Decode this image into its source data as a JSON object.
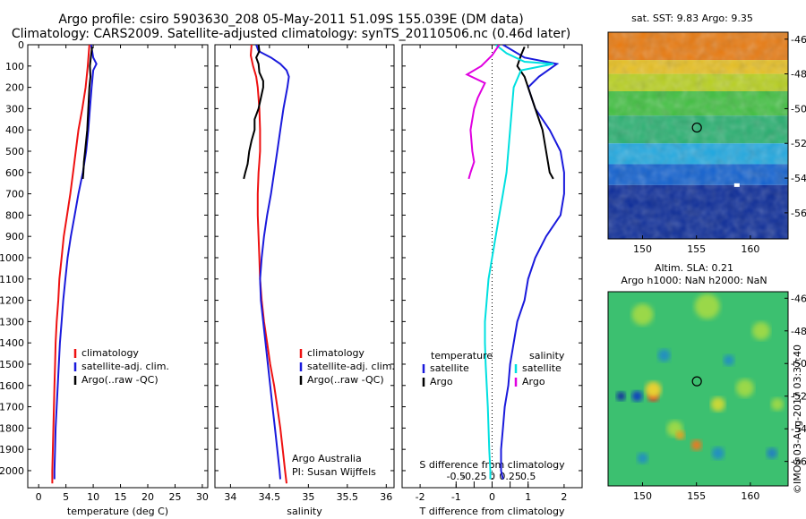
{
  "header": {
    "line1": "Argo profile: csiro 5903630_208 05-May-2011 51.09S 155.039E (DM data)",
    "line2": "Climatology: CARS2009. Satellite-adjusted climatology: synTS_20110506.nc (0.46d later)"
  },
  "colors": {
    "clim": "#ee1111",
    "sat": "#1a1adc",
    "argo": "#000000",
    "sat_diff": "#00e0e0",
    "argo_sal_diff": "#e000e0"
  },
  "chart_data": [
    {
      "type": "line",
      "id": "temperature",
      "xlabel": "temperature (deg C)",
      "ylabel": "",
      "xlim": [
        -2,
        31
      ],
      "ylim": [
        2080,
        0
      ],
      "xticks": [
        0,
        5,
        10,
        15,
        20,
        25,
        30
      ],
      "xtick_labels": [
        "0",
        "5",
        "10",
        "15",
        "20",
        "25",
        "30"
      ],
      "yticks": [
        0,
        100,
        200,
        300,
        400,
        500,
        600,
        700,
        800,
        900,
        1000,
        1100,
        1200,
        1300,
        1400,
        1500,
        1600,
        1700,
        1800,
        1900,
        2000
      ],
      "ytick_labels": [
        "0",
        "100",
        "200",
        "300",
        "400",
        "500",
        "600",
        "700",
        "800",
        "900",
        "1000",
        "1100",
        "1200",
        "1300",
        "1400",
        "1500",
        "1600",
        "1700",
        "1800",
        "1900",
        "2000"
      ],
      "legend": [
        "climatology",
        "satellite-adj. clim.",
        "Argo(..raw -QC)"
      ],
      "legend_placement": "lower-center",
      "series": [
        {
          "name": "climatology",
          "color": "#ee1111",
          "points": [
            [
              9.3,
              0
            ],
            [
              9.0,
              100
            ],
            [
              8.6,
              200
            ],
            [
              8.0,
              300
            ],
            [
              7.3,
              400
            ],
            [
              6.8,
              500
            ],
            [
              6.3,
              600
            ],
            [
              5.8,
              700
            ],
            [
              5.2,
              800
            ],
            [
              4.6,
              900
            ],
            [
              4.2,
              1000
            ],
            [
              3.8,
              1100
            ],
            [
              3.6,
              1200
            ],
            [
              3.3,
              1300
            ],
            [
              3.1,
              1400
            ],
            [
              3.0,
              1500
            ],
            [
              2.9,
              1600
            ],
            [
              2.8,
              1700
            ],
            [
              2.7,
              1800
            ],
            [
              2.6,
              1900
            ],
            [
              2.5,
              2000
            ],
            [
              2.5,
              2060
            ]
          ]
        },
        {
          "name": "satellite-adj. clim.",
          "color": "#1a1adc",
          "points": [
            [
              9.6,
              0
            ],
            [
              10.0,
              60
            ],
            [
              10.6,
              90
            ],
            [
              10.0,
              120
            ],
            [
              9.7,
              200
            ],
            [
              9.4,
              300
            ],
            [
              9.1,
              400
            ],
            [
              8.7,
              500
            ],
            [
              8.1,
              600
            ],
            [
              7.3,
              700
            ],
            [
              6.6,
              800
            ],
            [
              5.9,
              900
            ],
            [
              5.3,
              1000
            ],
            [
              4.9,
              1100
            ],
            [
              4.5,
              1200
            ],
            [
              4.2,
              1300
            ],
            [
              3.9,
              1400
            ],
            [
              3.7,
              1500
            ],
            [
              3.5,
              1600
            ],
            [
              3.3,
              1700
            ],
            [
              3.1,
              1800
            ],
            [
              3.0,
              1900
            ],
            [
              2.9,
              2000
            ],
            [
              2.9,
              2040
            ]
          ]
        },
        {
          "name": "Argo(..raw -QC)",
          "color": "#000000",
          "points": [
            [
              9.8,
              10
            ],
            [
              9.6,
              50
            ],
            [
              9.4,
              100
            ],
            [
              9.5,
              150
            ],
            [
              9.3,
              200
            ],
            [
              9.2,
              250
            ],
            [
              9.1,
              300
            ],
            [
              9.0,
              350
            ],
            [
              8.9,
              400
            ],
            [
              8.7,
              450
            ],
            [
              8.5,
              500
            ],
            [
              8.3,
              550
            ],
            [
              8.2,
              600
            ],
            [
              8.1,
              630
            ]
          ]
        }
      ]
    },
    {
      "type": "line",
      "id": "salinity",
      "xlabel": "salinity",
      "ylabel": "",
      "xlim": [
        33.8,
        36.1
      ],
      "ylim": [
        2080,
        0
      ],
      "xticks": [
        34,
        34.5,
        35,
        35.5,
        36
      ],
      "xtick_labels": [
        "34",
        "34.5",
        "35",
        "35.5",
        "36"
      ],
      "legend": [
        "climatology",
        "satellite-adj. clim.",
        "Argo(..raw -QC)"
      ],
      "legend_placement": "lower-right",
      "annotations": [
        "Argo Australia",
        "PI: Susan Wijffels"
      ],
      "series": [
        {
          "name": "climatology",
          "color": "#ee1111",
          "points": [
            [
              34.27,
              0
            ],
            [
              34.26,
              50
            ],
            [
              34.29,
              100
            ],
            [
              34.33,
              150
            ],
            [
              34.35,
              200
            ],
            [
              34.37,
              300
            ],
            [
              34.38,
              400
            ],
            [
              34.38,
              500
            ],
            [
              34.37,
              550
            ],
            [
              34.36,
              600
            ],
            [
              34.35,
              700
            ],
            [
              34.35,
              800
            ],
            [
              34.36,
              900
            ],
            [
              34.37,
              1000
            ],
            [
              34.38,
              1100
            ],
            [
              34.4,
              1200
            ],
            [
              34.43,
              1300
            ],
            [
              34.47,
              1400
            ],
            [
              34.51,
              1500
            ],
            [
              34.56,
              1600
            ],
            [
              34.6,
              1700
            ],
            [
              34.64,
              1800
            ],
            [
              34.67,
              1900
            ],
            [
              34.7,
              2000
            ],
            [
              34.72,
              2060
            ]
          ]
        },
        {
          "name": "satellite-adj. clim.",
          "color": "#1a1adc",
          "points": [
            [
              34.33,
              0
            ],
            [
              34.36,
              30
            ],
            [
              34.52,
              60
            ],
            [
              34.64,
              90
            ],
            [
              34.72,
              120
            ],
            [
              34.75,
              150
            ],
            [
              34.73,
              200
            ],
            [
              34.68,
              300
            ],
            [
              34.64,
              400
            ],
            [
              34.6,
              500
            ],
            [
              34.56,
              600
            ],
            [
              34.52,
              700
            ],
            [
              34.47,
              800
            ],
            [
              34.43,
              900
            ],
            [
              34.4,
              1000
            ],
            [
              34.38,
              1100
            ],
            [
              34.39,
              1200
            ],
            [
              34.42,
              1300
            ],
            [
              34.45,
              1400
            ],
            [
              34.48,
              1500
            ],
            [
              34.51,
              1600
            ],
            [
              34.54,
              1700
            ],
            [
              34.57,
              1800
            ],
            [
              34.6,
              1900
            ],
            [
              34.63,
              2000
            ],
            [
              34.64,
              2040
            ]
          ]
        },
        {
          "name": "Argo(..raw -QC)",
          "color": "#000000",
          "points": [
            [
              34.36,
              0
            ],
            [
              34.37,
              30
            ],
            [
              34.33,
              60
            ],
            [
              34.36,
              90
            ],
            [
              34.37,
              130
            ],
            [
              34.42,
              170
            ],
            [
              34.42,
              200
            ],
            [
              34.39,
              250
            ],
            [
              34.36,
              300
            ],
            [
              34.31,
              350
            ],
            [
              34.31,
              400
            ],
            [
              34.27,
              450
            ],
            [
              34.24,
              500
            ],
            [
              34.22,
              560
            ],
            [
              34.19,
              600
            ],
            [
              34.17,
              630
            ]
          ]
        }
      ]
    },
    {
      "type": "line",
      "id": "differences",
      "xlabel": "T difference from climatology",
      "x2label": "S difference from climatology",
      "xlim": [
        -2.5,
        2.5
      ],
      "ylim": [
        2080,
        0
      ],
      "xticks": [
        -2,
        -1,
        0,
        1,
        2
      ],
      "xtick_labels": [
        "-2",
        "-1",
        "0",
        "1",
        "2"
      ],
      "x2ticks": [
        -1,
        -0.5,
        0,
        0.5,
        1
      ],
      "x2tick_labels": [
        "-0.5",
        "-0.25",
        "0",
        "0.25",
        "0.5"
      ],
      "legend_groups": [
        {
          "title": "temperature",
          "entries": [
            "satellite",
            "Argo"
          ]
        },
        {
          "title": "salinity",
          "entries": [
            "satellite",
            "Argo"
          ]
        }
      ],
      "legend_placement": "lower-center",
      "series": [
        {
          "name": "temperature satellite",
          "color": "#1a1adc",
          "points": [
            [
              0.3,
              0
            ],
            [
              0.9,
              60
            ],
            [
              1.8,
              90
            ],
            [
              1.3,
              150
            ],
            [
              1.0,
              200
            ],
            [
              1.2,
              300
            ],
            [
              1.6,
              400
            ],
            [
              1.9,
              500
            ],
            [
              2.0,
              600
            ],
            [
              2.0,
              700
            ],
            [
              1.9,
              800
            ],
            [
              1.5,
              900
            ],
            [
              1.2,
              1000
            ],
            [
              1.0,
              1100
            ],
            [
              0.9,
              1200
            ],
            [
              0.7,
              1300
            ],
            [
              0.6,
              1400
            ],
            [
              0.5,
              1500
            ],
            [
              0.45,
              1600
            ],
            [
              0.35,
              1700
            ],
            [
              0.3,
              1800
            ],
            [
              0.25,
              1900
            ],
            [
              0.25,
              2000
            ],
            [
              0.3,
              2040
            ]
          ]
        },
        {
          "name": "temperature Argo",
          "color": "#000000",
          "points": [
            [
              0.9,
              10
            ],
            [
              0.8,
              50
            ],
            [
              0.7,
              100
            ],
            [
              0.9,
              150
            ],
            [
              1.0,
              200
            ],
            [
              1.2,
              300
            ],
            [
              1.4,
              400
            ],
            [
              1.5,
              500
            ],
            [
              1.6,
              600
            ],
            [
              1.7,
              630
            ]
          ]
        },
        {
          "name": "salinity satellite",
          "color": "#00e0e0",
          "points": [
            [
              0.1,
              0
            ],
            [
              0.4,
              40
            ],
            [
              0.9,
              80
            ],
            [
              1.7,
              90
            ],
            [
              0.8,
              120
            ],
            [
              0.6,
              200
            ],
            [
              0.55,
              300
            ],
            [
              0.5,
              400
            ],
            [
              0.45,
              500
            ],
            [
              0.4,
              600
            ],
            [
              0.3,
              700
            ],
            [
              0.2,
              800
            ],
            [
              0.1,
              900
            ],
            [
              0.0,
              1000
            ],
            [
              -0.1,
              1100
            ],
            [
              -0.15,
              1200
            ],
            [
              -0.2,
              1300
            ],
            [
              -0.2,
              1400
            ],
            [
              -0.18,
              1500
            ],
            [
              -0.15,
              1600
            ],
            [
              -0.12,
              1700
            ],
            [
              -0.1,
              1800
            ],
            [
              -0.08,
              1900
            ],
            [
              -0.05,
              2000
            ],
            [
              -0.05,
              2040
            ]
          ]
        },
        {
          "name": "salinity Argo",
          "color": "#e000e0",
          "points": [
            [
              0.2,
              0
            ],
            [
              0.0,
              50
            ],
            [
              -0.3,
              100
            ],
            [
              -0.7,
              140
            ],
            [
              -0.2,
              180
            ],
            [
              -0.4,
              250
            ],
            [
              -0.5,
              300
            ],
            [
              -0.6,
              400
            ],
            [
              -0.55,
              500
            ],
            [
              -0.5,
              550
            ],
            [
              -0.6,
              600
            ],
            [
              -0.65,
              630
            ]
          ]
        }
      ]
    },
    {
      "type": "heatmap",
      "id": "sst-map",
      "title": "sat. SST: 9.83  Argo: 9.35",
      "xticks": [
        150,
        155,
        160
      ],
      "xtick_labels": [
        "150",
        "155",
        "160"
      ],
      "yticks": [
        -46,
        -48,
        -50,
        -52,
        -54,
        -56
      ],
      "ytick_labels": [
        "-46",
        "-48",
        "-50",
        "-52",
        "-54",
        "-56"
      ],
      "xlim": [
        146.8,
        163.5
      ],
      "ylim": [
        -57.5,
        -45.6
      ],
      "marker": {
        "lon": 155.04,
        "lat": -51.09
      }
    },
    {
      "type": "heatmap",
      "id": "sla-map",
      "title": "Altim. SLA: 0.21",
      "subtitle": "Argo h1000: NaN  h2000: NaN",
      "xticks": [
        150,
        155,
        160
      ],
      "xtick_labels": [
        "150",
        "155",
        "160"
      ],
      "yticks": [
        -46,
        -48,
        -50,
        -52,
        -54,
        -56
      ],
      "ytick_labels": [
        "-46",
        "-48",
        "-50",
        "-52",
        "-54",
        "-56"
      ],
      "xlim": [
        146.8,
        163.5
      ],
      "ylim": [
        -57.5,
        -45.6
      ],
      "marker": {
        "lon": 155.04,
        "lat": -51.09
      }
    }
  ],
  "footer": {
    "credit": "©IMOS 03-Aug-2017 03:37:40"
  }
}
